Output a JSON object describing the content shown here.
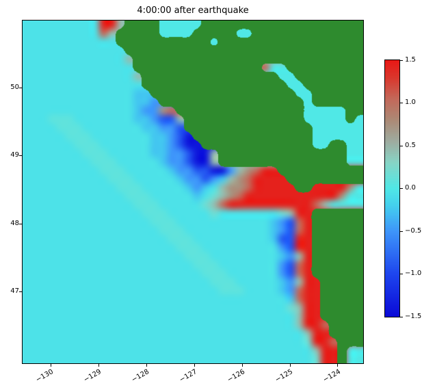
{
  "title": "4:00:00 after earthquake",
  "axes": {
    "xlim": [
      -130.6,
      -123.47
    ],
    "ylim": [
      45.95,
      50.99
    ],
    "xticks": [
      -130,
      -129,
      -128,
      -127,
      -126,
      -125,
      -124
    ],
    "xtick_labels": [
      "−130",
      "−129",
      "−128",
      "−127",
      "−126",
      "−125",
      "−124"
    ],
    "yticks": [
      50,
      49,
      48,
      47
    ],
    "ytick_labels": [
      "50",
      "49",
      "48",
      "47"
    ]
  },
  "colorbar": {
    "vmin": -1.5,
    "vmax": 1.5,
    "tick_values": [
      1.5,
      1.0,
      0.5,
      0.0,
      -0.5,
      -1.0,
      -1.5
    ],
    "tick_labels": [
      "1.5",
      "1.0",
      "0.5",
      "0.0",
      "−0.5",
      "−1.0",
      "−1.5"
    ]
  },
  "colormap": {
    "land_color": "#2e8b2e",
    "stops": [
      {
        "v": -1.5,
        "rgb": [
          10,
          10,
          215
        ]
      },
      {
        "v": -1.0,
        "rgb": [
          30,
          70,
          238
        ]
      },
      {
        "v": -0.5,
        "rgb": [
          62,
          150,
          250
        ]
      },
      {
        "v": -0.2,
        "rgb": [
          68,
          208,
          238
        ]
      },
      {
        "v": 0.0,
        "rgb": [
          80,
          232,
          230
        ]
      },
      {
        "v": 0.3,
        "rgb": [
          135,
          213,
          198
        ]
      },
      {
        "v": 0.55,
        "rgb": [
          158,
          172,
          160
        ]
      },
      {
        "v": 0.8,
        "rgb": [
          172,
          138,
          118
        ]
      },
      {
        "v": 1.05,
        "rgb": [
          195,
          105,
          90
        ]
      },
      {
        "v": 1.3,
        "rgb": [
          218,
          55,
          45
        ]
      },
      {
        "v": 1.5,
        "rgb": [
          232,
          25,
          22
        ]
      }
    ]
  },
  "chart_data": {
    "type": "heatmap",
    "title": "4:00:00 after earthquake",
    "x_range": [
      -130.6,
      -123.47
    ],
    "y_range": [
      45.95,
      50.99
    ],
    "value_range": [
      -1.5,
      1.5
    ],
    "grid_note": "coarse grid of sea-surface elevation; rows top(north) to bottom(south), cols west to east; G = land mask",
    "palette": {
      "G": "land",
      ".": -0.05,
      "~": 0.08,
      "o": 0.18,
      "v": -0.25,
      "u": -0.5,
      "b": -0.9,
      "B": -1.4,
      "g": 0.45,
      "p": 0.75,
      "r": 1.05,
      "R": 1.45,
      "C": 0.0
    },
    "grid_rows": [
      ".........RRgGGGGCCCCCGGGGGGGGGGGGGGGGGGG",
      ".........rgGGGGGCCCCGGGGGCCGGGGGGGGGGGGG",
      "...........GGGGGGGGGGGCGGGGGGGGGGGGGGGGG",
      "............GGGGGGGGGGGGGGGGGGGGGGGGGGGG",
      "............gGGGGGGGGGGGGGGGGGGGGGGGGGGG",
      ".............GGGGGGGGGGGGGGGrCCGGGGGGGGG",
      ".............gGGGGGGGGGGGGGGGGCCGGGGGGGG",
      "..............GGGGGGGGGGGGGGGGGCCGGGGGGG",
      ".............vvGGGGGGGGGGGGGGGGGCCGGGGGG",
      ".............vvuGGGGGGGGGGGGGGGGGCGGGGGG",
      ".............vuuprGGGGGGGGGGGGGGGCCCCCGG",
      "...~~~.......vvubbgGGGGGGGGGGGGGGCCCCCGC",
      "....~~~.......vvuubGGGGGGGGGGGGGGGCCCCCC",
      ".....~~~.......vvubBGGGGGGGGGGGGGGCCCCCC",
      "......~~~......vvubBBGGGGGGGGGGGGGCCGGCC",
      ".......~~~.....vvuubBBgGGGGGGGGGGGGGGGCC",
      "........~~~.....vuubBBgGGGGGGGGGGGGGGGCC",
      ".........~~~.....vuubbBBugprRRGGGGGGGGGG",
      "..........~~~.....vuubuvgprRRRRGGGGGGGGG",
      "...........~~~.....vuv.gpprRRRRRGGRRRRpC",
      "............~~~.....v.ogprRRRRRRRRRRRpCC",
      ".............~~~.....ogrRRRRRRRRRRrgCCCC",
      "..............~~~.....o.......ogRRGGGGGG",
      "...............~~~...........vubrRGGGGGG",
      "................~~~..........vubrRGGGGGG",
      ".................~~~.........vbbRRGGGGGG",
      "..................~~~.........ubRRGGGGGG",
      "...................~~~........vugRGGGGGG",
      "....................~~~.......ubrRGGGGGG",
      ".....................~~~......ubrRGGGGGG",
      "......................~~~.....vugRRGGGGG",
      ".......................~~~....vurRRGGGGG",
      "...............................vrRRGGGGG",
      "...............................ogRRGGGGG",
      "................................gRRGGGGG",
      "................................gRRrGGGG",
      ".................................gRRGGGG",
      ".................................oRRrGGG",
      "..................................gRRGCC",
      "..................................oRRGCC"
    ]
  }
}
